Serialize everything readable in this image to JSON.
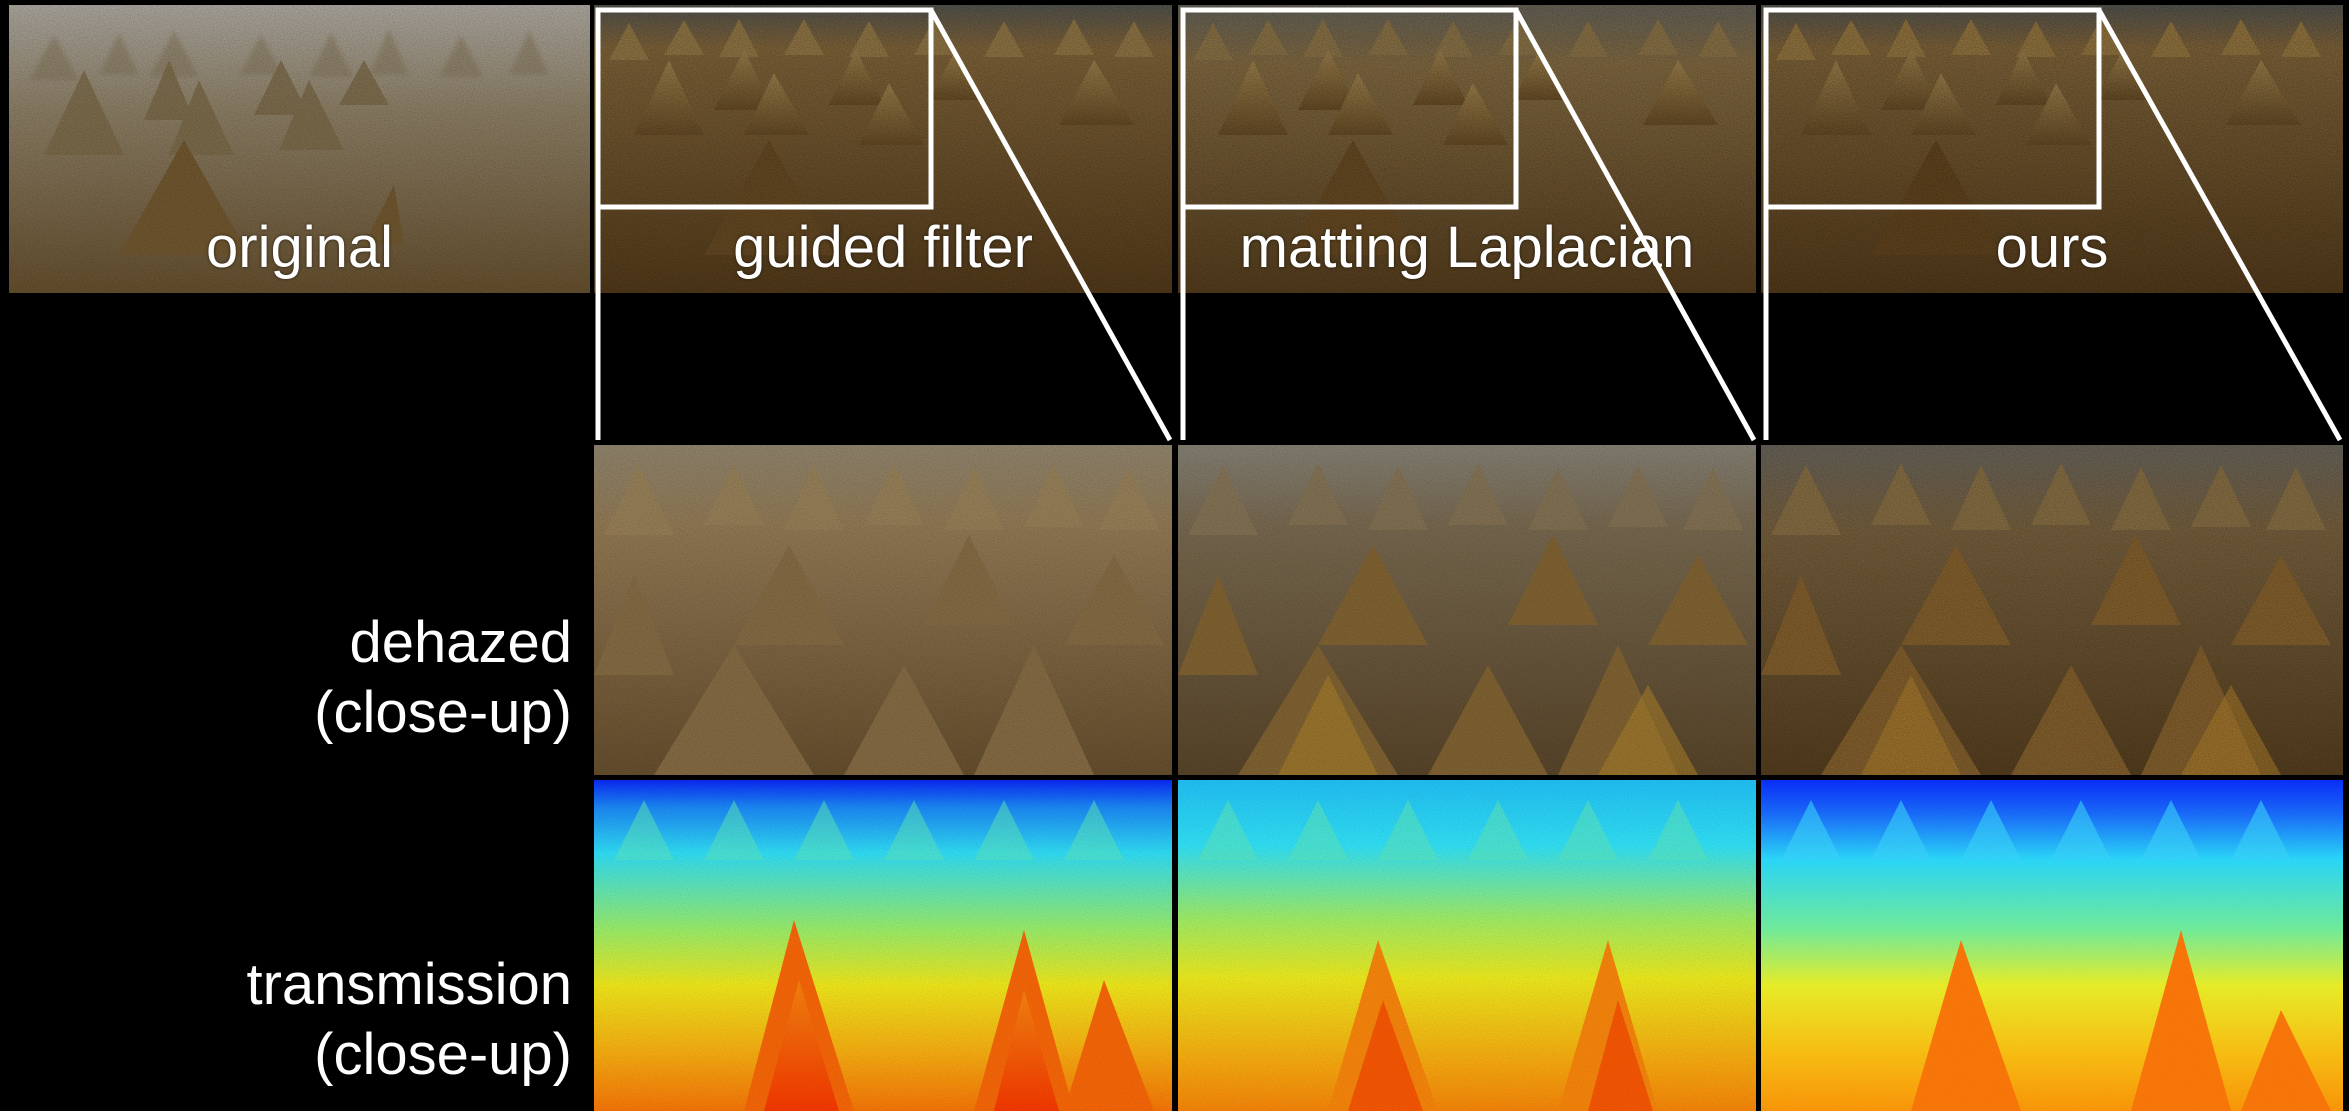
{
  "top_row": {
    "captions": [
      "original",
      "guided filter",
      "matting Laplacian",
      "ours"
    ]
  },
  "rows": [
    {
      "line1": "dehazed",
      "line2": "(close-up)"
    },
    {
      "line1": "transmission",
      "line2": "(close-up)"
    }
  ],
  "colors": {
    "background": "#000000",
    "haze": "#a89f8e",
    "straw": "#8c6a35",
    "jet_blue": "#0a2cff",
    "jet_cyan": "#22e4ff",
    "jet_yellow": "#f6f21e",
    "jet_red": "#ff3a00"
  }
}
